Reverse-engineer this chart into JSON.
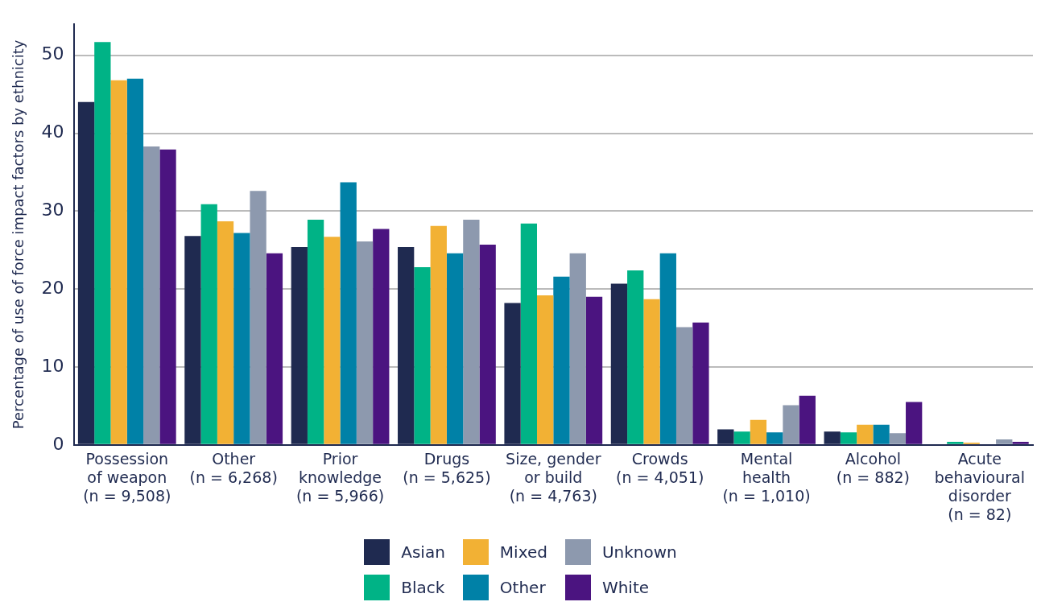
{
  "chart_data": {
    "type": "bar",
    "ylabel": "Percentage of use of force impact factors by ethnicity",
    "categories": [
      "Possession\nof weapon\n(n = 9,508)",
      "Other\n(n = 6,268)",
      "Prior\nknowledge\n(n = 5,966)",
      "Drugs\n(n = 5,625)",
      "Size, gender\nor build\n(n = 4,763)",
      "Crowds\n(n = 4,051)",
      "Mental\nhealth\n(n = 1,010)",
      "Alcohol\n(n = 882)",
      "Acute\nbehavioural\ndisorder\n(n = 82)"
    ],
    "series": [
      {
        "name": "Asian",
        "color": "#1f2a50",
        "values": [
          44.0,
          26.8,
          25.4,
          25.4,
          18.2,
          20.7,
          2.0,
          1.7,
          0
        ]
      },
      {
        "name": "Black",
        "color": "#00b386",
        "values": [
          51.7,
          30.9,
          28.9,
          22.8,
          28.4,
          22.4,
          1.7,
          1.6,
          0.4
        ]
      },
      {
        "name": "Mixed",
        "color": "#f2b134",
        "values": [
          46.8,
          28.7,
          26.7,
          28.1,
          19.2,
          18.7,
          3.2,
          2.6,
          0.3
        ]
      },
      {
        "name": "Other",
        "color": "#0081a7",
        "values": [
          47.0,
          27.2,
          33.7,
          24.6,
          21.6,
          24.6,
          1.6,
          2.6,
          0
        ]
      },
      {
        "name": "Unknown",
        "color": "#8d99ae",
        "values": [
          38.3,
          32.6,
          26.1,
          28.9,
          24.6,
          15.1,
          5.1,
          1.5,
          0.7
        ]
      },
      {
        "name": "White",
        "color": "#4b1480",
        "values": [
          37.9,
          24.6,
          27.7,
          25.7,
          19.0,
          15.7,
          6.3,
          5.5,
          0.4
        ]
      }
    ],
    "ylim": [
      0,
      54
    ],
    "yticks": [
      0,
      10,
      20,
      30,
      40,
      50
    ],
    "grid": "y",
    "legend": "bottom"
  }
}
